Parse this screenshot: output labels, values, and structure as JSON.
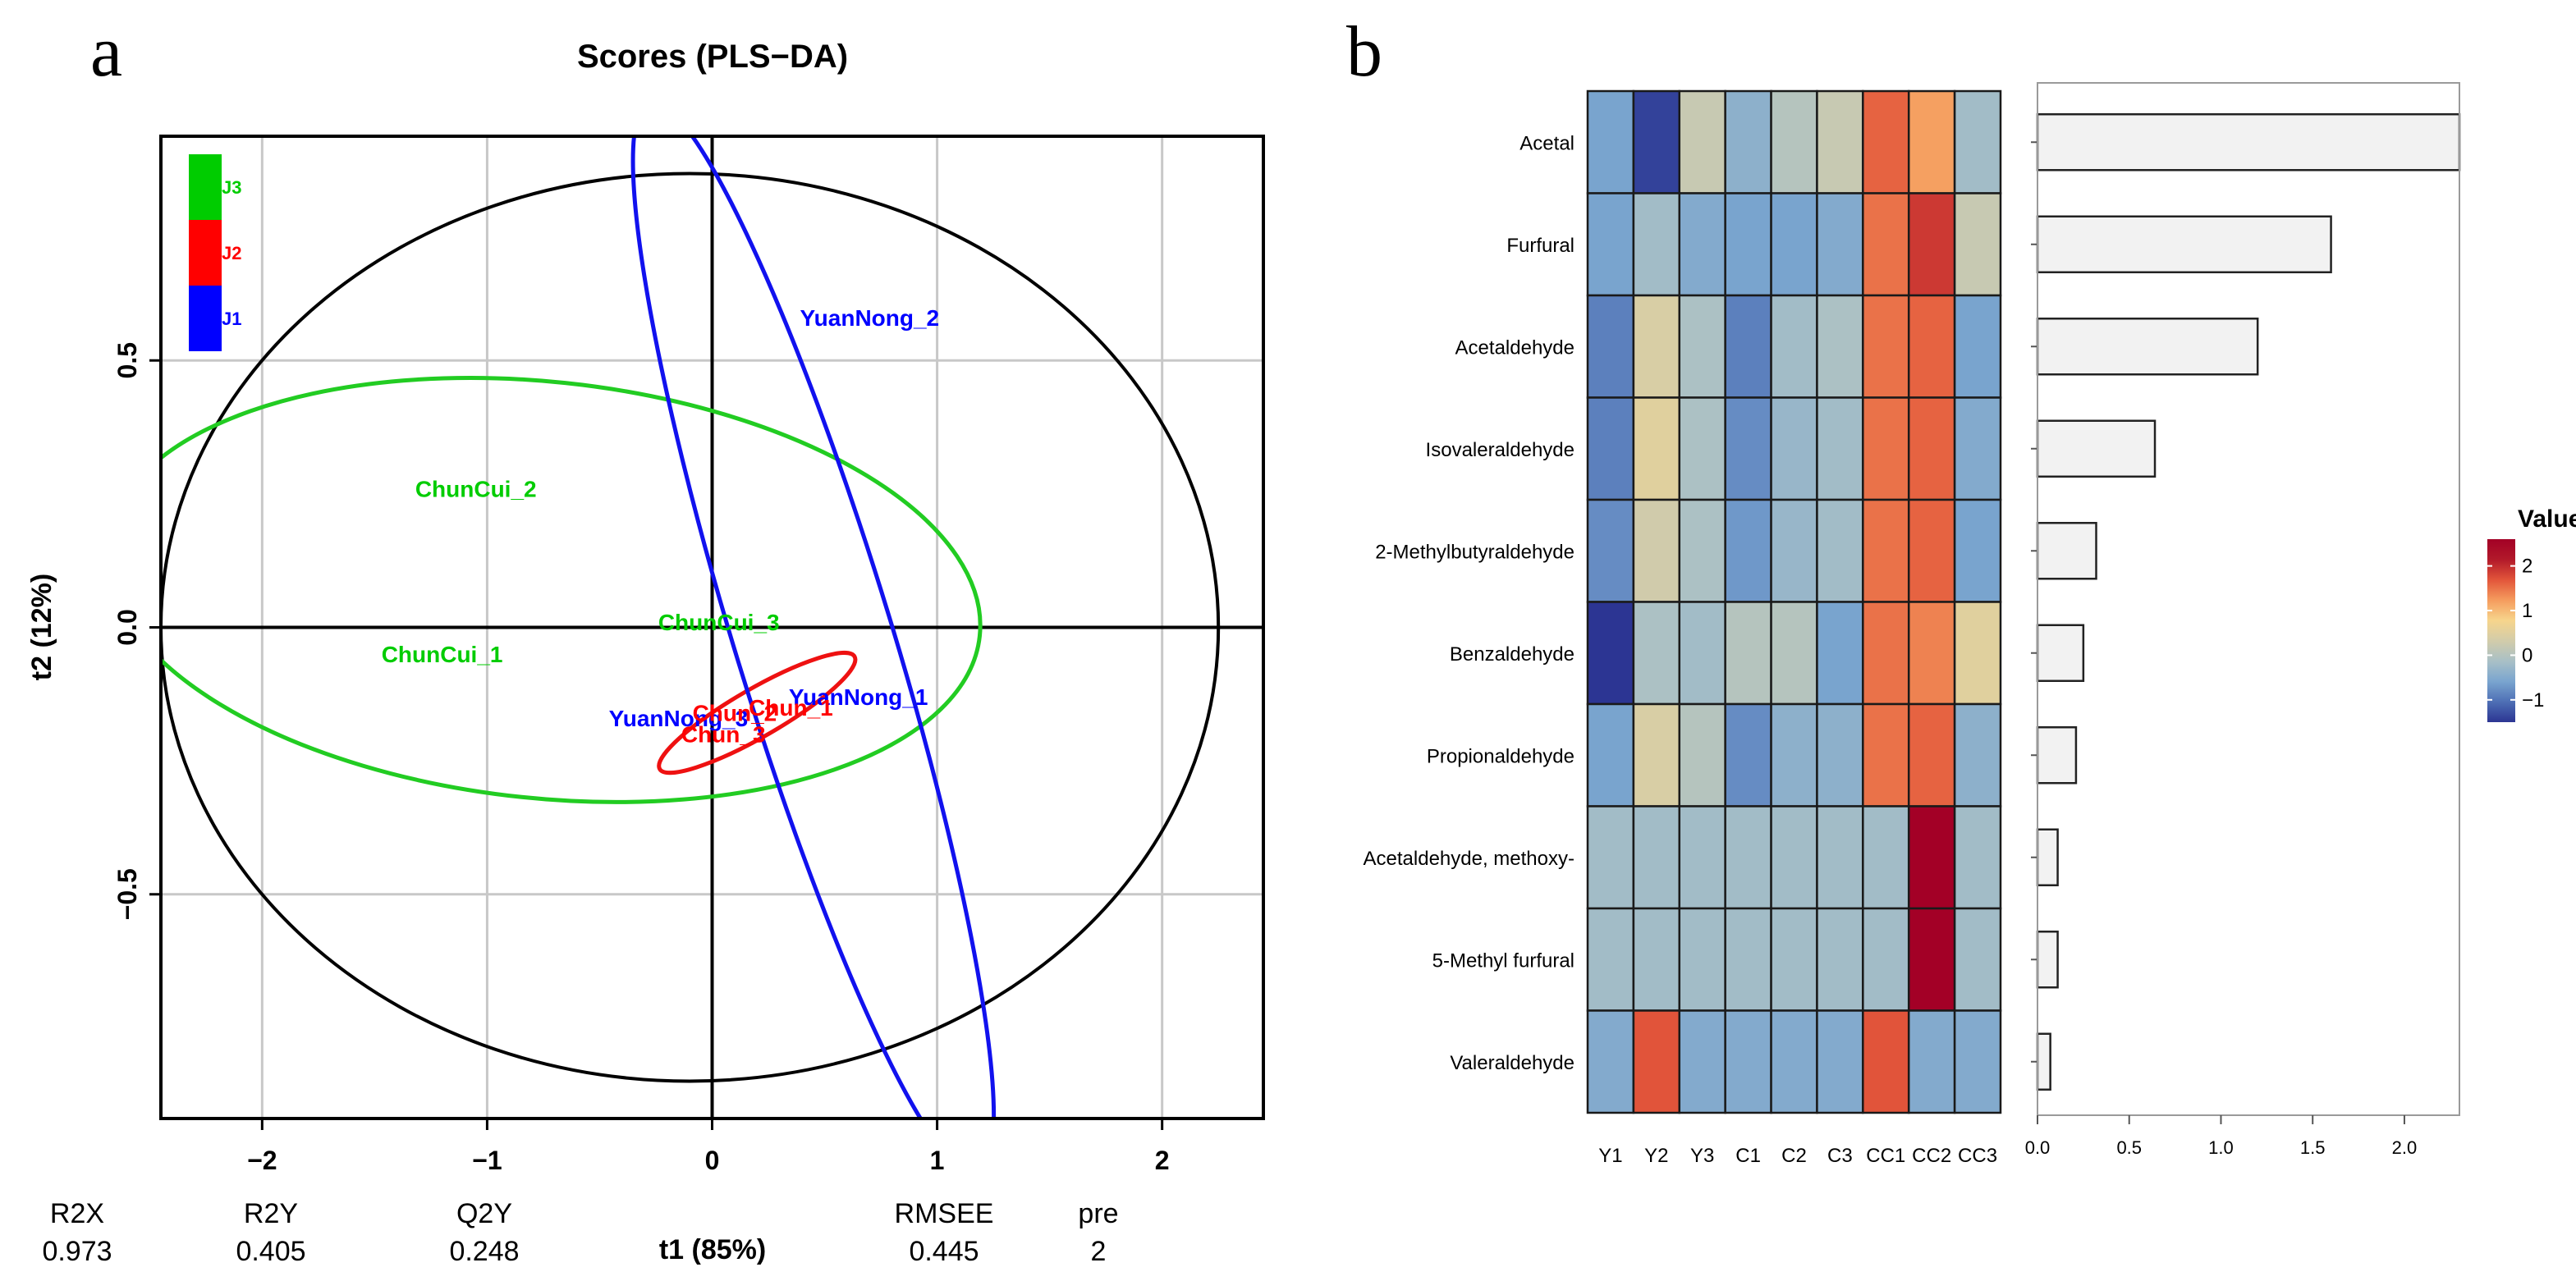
{
  "panel_a": {
    "label": "a",
    "colors": {
      "J3": "#00cc00",
      "J2": "#ff0000",
      "J1": "#0000ff",
      "ellipse_green": "#22cc22",
      "ellipse_red": "#ee1111",
      "ellipse_blue": "#1111ee",
      "unit_circle": "#000000",
      "grid": "#c8c8c8"
    },
    "legend": [
      {
        "key": "J3",
        "label": "J3",
        "color": "#00cc00"
      },
      {
        "key": "J2",
        "label": "J2",
        "color": "#ff0000"
      },
      {
        "key": "J1",
        "label": "J1",
        "color": "#0000ff"
      }
    ],
    "stats": {
      "headers": [
        "R2X",
        "R2Y",
        "Q2Y",
        "RMSEE",
        "pre"
      ],
      "values": [
        "0.973",
        "0.405",
        "0.248",
        "0.445",
        "2"
      ]
    }
  },
  "panel_b": {
    "label": "b",
    "legend_title": "Value",
    "legend_ticks": [
      "2",
      "1",
      "0",
      "−1"
    ],
    "colorscale": [
      "#2c3593",
      "#4e6fb5",
      "#7aa5cf",
      "#a9c0c6",
      "#d2ccaa",
      "#f7d58c",
      "#f59c5e",
      "#e2553a",
      "#b2192a",
      "#a30026"
    ]
  },
  "chart_data": [
    {
      "type": "scatter",
      "title": "Scores (PLS−DA)",
      "xlabel": "t1 (85%)",
      "ylabel": "t2 (12%)",
      "xlim": [
        -2.45,
        2.45
      ],
      "ylim": [
        -0.92,
        0.92
      ],
      "xticks": [
        -2,
        -1,
        0,
        1,
        2
      ],
      "xtick_labels": [
        "−2",
        "−1",
        "0",
        "1",
        "2"
      ],
      "yticks": [
        0.5,
        0.0,
        -0.5
      ],
      "ytick_labels": [
        "0.5",
        "0.0",
        "−0.5"
      ],
      "points": [
        {
          "label": "YuanNong_2",
          "x": 0.7,
          "y": 0.58,
          "group": "J1"
        },
        {
          "label": "YuanNong_1",
          "x": 0.65,
          "y": -0.13,
          "group": "J1"
        },
        {
          "label": "YuanNong_3",
          "x": -0.15,
          "y": -0.17,
          "group": "J1"
        },
        {
          "label": "ChunCui_2",
          "x": -1.05,
          "y": 0.26,
          "group": "J3"
        },
        {
          "label": "ChunCui_1",
          "x": -1.2,
          "y": -0.05,
          "group": "J3"
        },
        {
          "label": "ChunCui_3",
          "x": 0.03,
          "y": 0.01,
          "group": "J3"
        },
        {
          "label": "Chun_1",
          "x": 0.35,
          "y": -0.15,
          "group": "J2"
        },
        {
          "label": "Chun_3",
          "x": 0.05,
          "y": -0.2,
          "group": "J2"
        },
        {
          "label": "Chun_2",
          "x": 0.1,
          "y": -0.16,
          "group": "J2"
        }
      ],
      "ellipses": [
        {
          "group": "unit",
          "cx": -0.1,
          "cy": 0.0,
          "rx": 2.35,
          "ry": 0.85,
          "angle": 0
        },
        {
          "group": "J3",
          "cx": -0.75,
          "cy": 0.07,
          "rx": 1.95,
          "ry": 0.39,
          "angle": -6
        },
        {
          "group": "J2",
          "cx": 0.2,
          "cy": -0.16,
          "rx": 0.5,
          "ry": 0.045,
          "angle": 30
        },
        {
          "group": "J1",
          "cx": 0.45,
          "cy": -0.02,
          "rx": 0.35,
          "ry": 1.05,
          "angle": 17
        }
      ]
    },
    {
      "type": "heatmap",
      "columns": [
        "Y1",
        "Y2",
        "Y3",
        "C1",
        "C2",
        "C3",
        "CC1",
        "CC2",
        "CC3"
      ],
      "rows": [
        "Acetal",
        "Furfural",
        "Acetaldehyde",
        "Isovaleraldehyde",
        "2-Methylbutyraldehyde",
        "Benzaldehyde",
        "Propionaldehyde",
        "Acetaldehyde, methoxy-",
        "5-Methyl furfural",
        "Valeraldehyde"
      ],
      "values": [
        [
          -0.6,
          -1.4,
          0.2,
          -0.4,
          0.0,
          0.2,
          1.6,
          1.2,
          -0.2
        ],
        [
          -0.6,
          -0.2,
          -0.5,
          -0.6,
          -0.6,
          -0.5,
          1.5,
          1.9,
          0.2
        ],
        [
          -0.9,
          0.4,
          -0.1,
          -0.9,
          -0.2,
          -0.1,
          1.5,
          1.6,
          -0.6
        ],
        [
          -0.9,
          0.5,
          -0.1,
          -0.8,
          -0.3,
          -0.2,
          1.5,
          1.6,
          -0.5
        ],
        [
          -0.8,
          0.3,
          -0.1,
          -0.7,
          -0.3,
          -0.2,
          1.5,
          1.6,
          -0.6
        ],
        [
          -1.5,
          -0.1,
          -0.2,
          0.0,
          0.0,
          -0.6,
          1.5,
          1.4,
          0.5
        ],
        [
          -0.6,
          0.4,
          0.0,
          -0.8,
          -0.4,
          -0.4,
          1.5,
          1.6,
          -0.4
        ],
        [
          -0.2,
          -0.2,
          -0.2,
          -0.2,
          -0.2,
          -0.2,
          -0.2,
          2.6,
          -0.2
        ],
        [
          -0.2,
          -0.2,
          -0.2,
          -0.2,
          -0.2,
          -0.2,
          -0.2,
          2.6,
          -0.2
        ],
        [
          -0.5,
          1.7,
          -0.5,
          -0.5,
          -0.5,
          -0.5,
          1.7,
          -0.5,
          -0.5
        ]
      ],
      "colorbar_range": [
        -1.5,
        2.6
      ]
    },
    {
      "type": "bar",
      "orientation": "horizontal",
      "categories": [
        "Acetal",
        "Furfural",
        "Acetaldehyde",
        "Isovaleraldehyde",
        "2-Methylbutyraldehyde",
        "Benzaldehyde",
        "Propionaldehyde",
        "Acetaldehyde, methoxy-",
        "5-Methyl furfural",
        "Valeraldehyde"
      ],
      "values": [
        2.35,
        1.6,
        1.2,
        0.64,
        0.32,
        0.25,
        0.21,
        0.11,
        0.11,
        0.07
      ],
      "xlim": [
        0,
        2.3
      ],
      "xticks": [
        0.0,
        0.5,
        1.0,
        1.5,
        2.0
      ],
      "xtick_labels": [
        "0.0",
        "0.5",
        "1.0",
        "1.5",
        "2.0"
      ]
    }
  ]
}
